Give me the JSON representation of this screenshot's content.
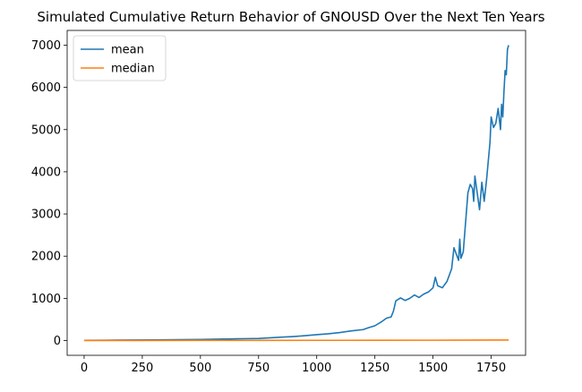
{
  "chart_data": {
    "type": "line",
    "title": "Simulated Cumulative Return Behavior of GNOUSD Over the Next Ten Years",
    "xlabel": "",
    "ylabel": "",
    "xlim": [
      -73,
      1898
    ],
    "ylim": [
      -350,
      7350
    ],
    "x_ticks": [
      0,
      250,
      500,
      750,
      1000,
      1250,
      1500,
      1750
    ],
    "y_ticks": [
      0,
      1000,
      2000,
      3000,
      4000,
      5000,
      6000,
      7000
    ],
    "grid": false,
    "legend": {
      "position": "top-left"
    },
    "series": [
      {
        "name": "mean",
        "color": "#1f77b4",
        "x": [
          0,
          100,
          200,
          300,
          400,
          500,
          550,
          600,
          650,
          700,
          750,
          800,
          850,
          900,
          950,
          1000,
          1050,
          1100,
          1150,
          1200,
          1220,
          1250,
          1280,
          1300,
          1320,
          1330,
          1340,
          1360,
          1380,
          1400,
          1420,
          1440,
          1460,
          1480,
          1500,
          1510,
          1520,
          1540,
          1560,
          1580,
          1590,
          1600,
          1610,
          1615,
          1620,
          1630,
          1640,
          1650,
          1660,
          1670,
          1675,
          1680,
          1690,
          1700,
          1710,
          1720,
          1730,
          1740,
          1745,
          1750,
          1760,
          1770,
          1780,
          1790,
          1795,
          1800,
          1805,
          1810,
          1815,
          1820,
          1825
        ],
        "values": [
          5,
          8,
          12,
          16,
          20,
          25,
          30,
          35,
          40,
          45,
          50,
          65,
          80,
          95,
          115,
          140,
          160,
          190,
          230,
          260,
          300,
          350,
          450,
          530,
          560,
          700,
          940,
          1010,
          950,
          1000,
          1080,
          1020,
          1100,
          1150,
          1250,
          1500,
          1300,
          1250,
          1400,
          1700,
          2200,
          2050,
          1900,
          2400,
          1950,
          2100,
          2800,
          3500,
          3700,
          3600,
          3300,
          3900,
          3500,
          3100,
          3750,
          3300,
          3800,
          4400,
          4700,
          5300,
          5050,
          5150,
          5500,
          5000,
          5600,
          5300,
          5900,
          6400,
          6300,
          6900,
          7000
        ]
      },
      {
        "name": "median",
        "color": "#ff7f0e",
        "x": [
          0,
          250,
          500,
          750,
          1000,
          1250,
          1500,
          1750,
          1825
        ],
        "values": [
          1,
          2,
          3,
          4,
          5,
          6,
          8,
          11,
          12
        ]
      }
    ]
  }
}
